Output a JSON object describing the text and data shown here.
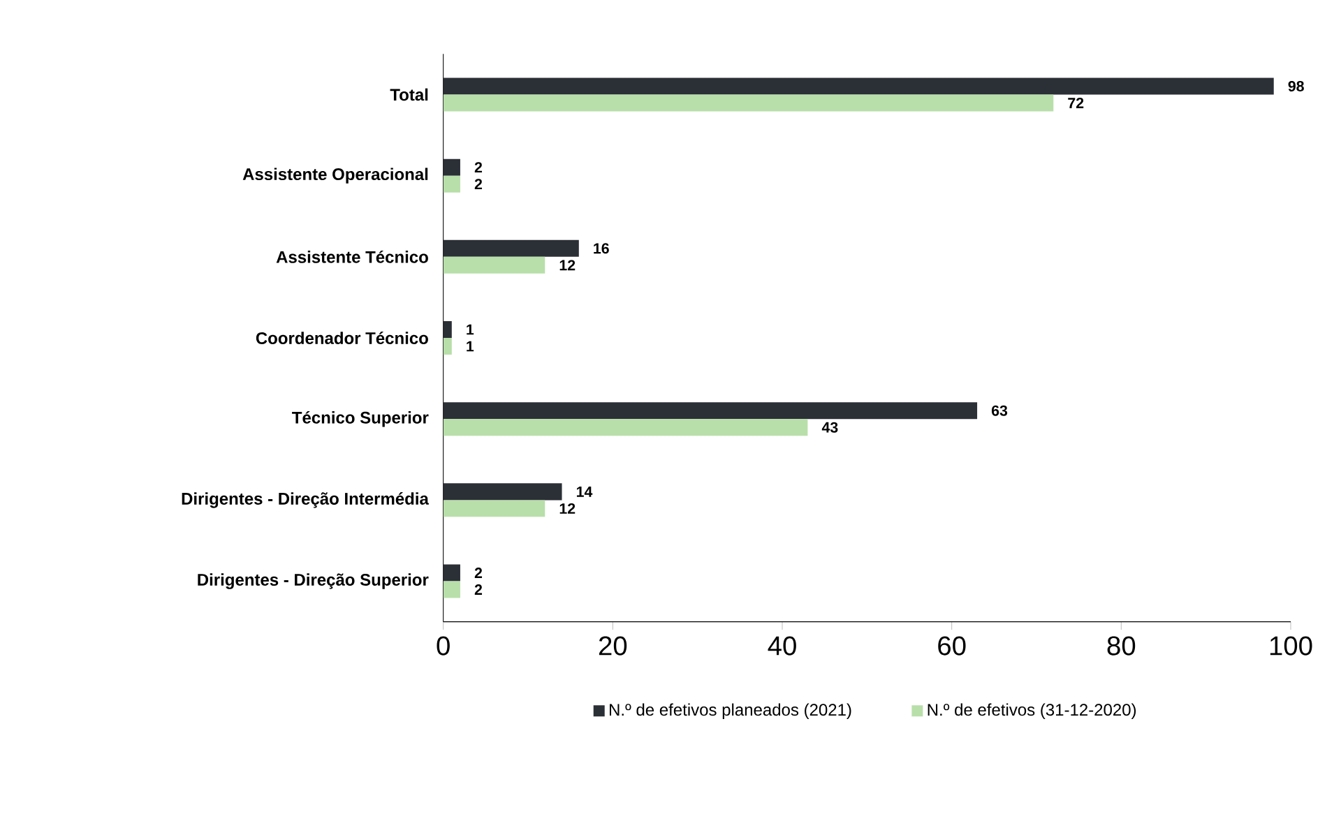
{
  "chart_data": {
    "type": "bar",
    "orientation": "horizontal",
    "categories": [
      "Total",
      "Assistente Operacional",
      "Assistente Técnico",
      "Coordenador Técnico",
      "Técnico Superior",
      "Dirigentes - Direção Intermédia",
      "Dirigentes - Direção Superior"
    ],
    "series": [
      {
        "name": "N.º de efetivos planeados (2021)",
        "color": "#2b2f36",
        "values": [
          98,
          2,
          16,
          1,
          63,
          14,
          2
        ]
      },
      {
        "name": "N.º de efetivos (31-12-2020)",
        "color": "#b8dfa9",
        "values": [
          72,
          2,
          12,
          1,
          43,
          12,
          2
        ]
      }
    ],
    "xlim": [
      0,
      100
    ],
    "xticks": [
      0,
      20,
      40,
      60,
      80,
      100
    ],
    "grid": false,
    "legend": "bottom",
    "data_labels": true
  }
}
